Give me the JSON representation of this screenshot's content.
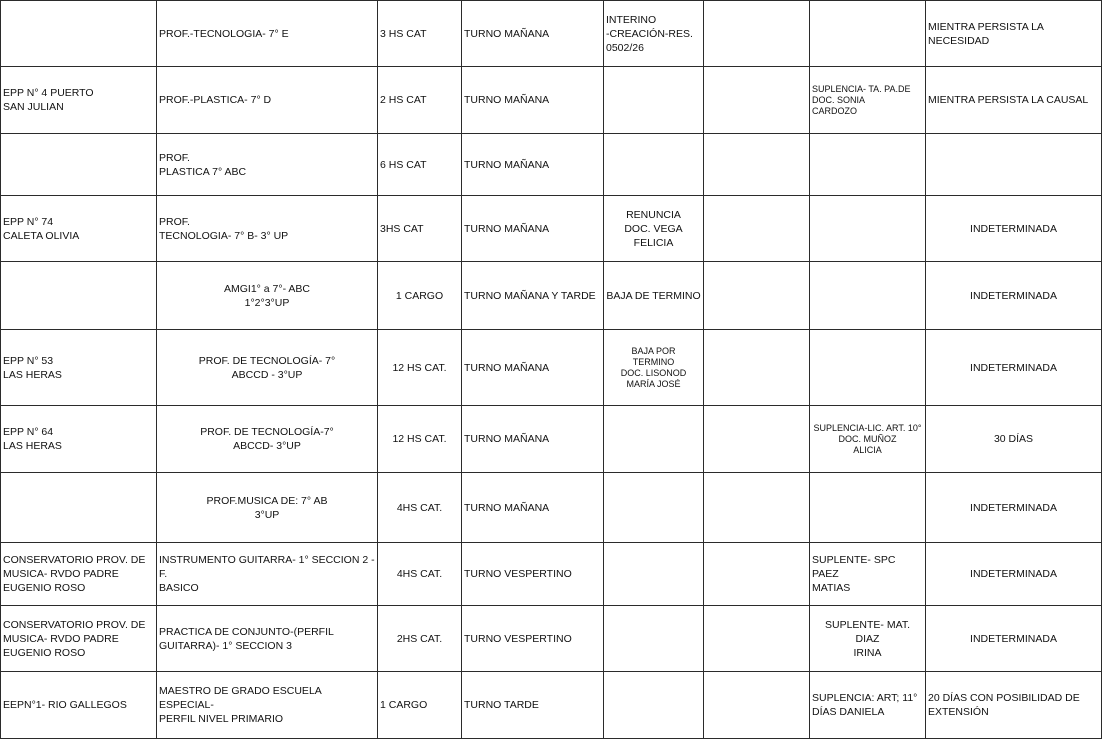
{
  "table": {
    "rows": [
      [
        "",
        "PROF.-TECNOLOGIA- 7° E",
        "3 HS CAT",
        "TURNO MAÑANA",
        "INTERINO\n-CREACIÓN-RES.\n0502/26",
        "",
        "",
        "MIENTRA PERSISTA LA NECESIDAD"
      ],
      [
        "EPP N° 4 PUERTO\nSAN JULIAN",
        "PROF.-PLASTICA- 7° D",
        "2 HS CAT",
        "TURNO MAÑANA",
        "",
        "",
        "SUPLENCIA- TA. PA.DE\nDOC. SONIA\nCARDOZO",
        "MIENTRA PERSISTA LA CAUSAL"
      ],
      [
        "",
        "PROF.\nPLASTICA 7° ABC",
        "6 HS CAT",
        "TURNO MAÑANA",
        "",
        "",
        "",
        ""
      ],
      [
        "EPP N° 74\nCALETA OLIVIA",
        "PROF.\nTECNOLOGIA- 7° B- 3° UP",
        "3HS CAT",
        "TURNO MAÑANA",
        "RENUNCIA\nDOC. VEGA FELICIA",
        "",
        "",
        "INDETERMINADA"
      ],
      [
        "",
        "AMGI1° a 7°- ABC\n1°2°3°UP",
        "1 CARGO",
        "TURNO MAÑANA Y TARDE",
        "BAJA DE TERMINO",
        "",
        "",
        "INDETERMINADA"
      ],
      [
        "EPP N° 53\nLAS HERAS",
        "PROF. DE TECNOLOGÍA- 7°\nABCCD - 3°UP",
        "12 HS CAT.",
        "TURNO MAÑANA",
        "BAJA POR\nTERMINO\nDOC. LISONOD\nMARÍA JOSÉ",
        "",
        "",
        "INDETERMINADA"
      ],
      [
        "EPP N° 64\nLAS HERAS",
        "PROF. DE TECNOLOGÍA-7°\nABCCD- 3°UP",
        "12 HS CAT.",
        "TURNO MAÑANA",
        "",
        "",
        "SUPLENCIA-LIC. ART. 10°\nDOC. MUÑOZ\nALICIA",
        "30 DÍAS"
      ],
      [
        "",
        "PROF.MUSICA DE: 7° AB\n3°UP",
        "4HS CAT.",
        "TURNO MAÑANA",
        "",
        "",
        "",
        "INDETERMINADA"
      ],
      [
        "CONSERVATORIO PROV. DE\nMUSICA- RVDO PADRE\nEUGENIO ROSO",
        " INSTRUMENTO GUITARRA- 1° SECCION 2 - F.\nBASICO",
        "4HS CAT.",
        "TURNO VESPERTINO",
        "",
        "",
        "SUPLENTE- SPC PAEZ\nMATIAS",
        "INDETERMINADA"
      ],
      [
        "CONSERVATORIO PROV. DE\nMUSICA- RVDO PADRE\nEUGENIO ROSO",
        "PRACTICA DE  CONJUNTO-(PERFIL\nGUITARRA)- 1° SECCION 3",
        "2HS CAT.",
        "TURNO VESPERTINO",
        "",
        "",
        "SUPLENTE- MAT. DIAZ\nIRINA",
        "INDETERMINADA"
      ],
      [
        "EEPN°1- RIO GALLEGOS",
        "MAESTRO DE GRADO ESCUELA  ESPECIAL-\nPERFIL NIVEL PRIMARIO",
        "1 CARGO",
        "TURNO TARDE",
        "",
        "",
        "SUPLENCIA: ART; 11°\nDÍAS DANIELA",
        "20 DÍAS CON POSIBILIDAD DE\nEXTENSIÓN"
      ]
    ]
  }
}
